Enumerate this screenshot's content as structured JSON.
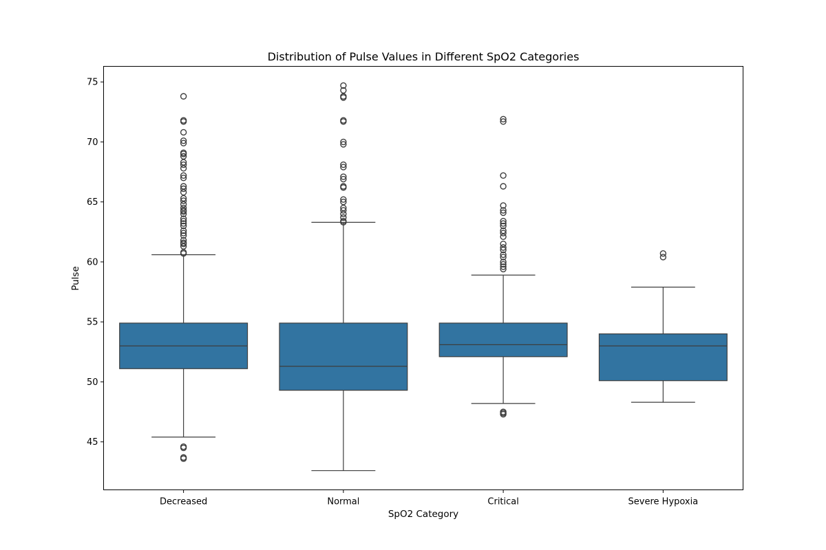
{
  "chart_data": {
    "type": "box",
    "title": "Distribution of Pulse Values in Different SpO2 Categories",
    "xlabel": "SpO2 Category",
    "ylabel": "Pulse",
    "ylim": [
      41,
      76.3
    ],
    "yticks": [
      45,
      50,
      55,
      60,
      65,
      70,
      75
    ],
    "grid": false,
    "colors": {
      "box_fill": "#3274a1",
      "line": "#3d3d3d",
      "frame": "#000000"
    },
    "categories": [
      "Decreased",
      "Normal",
      "Critical",
      "Severe Hypoxia"
    ],
    "boxes": [
      {
        "category": "Decreased",
        "whisker_low": 45.4,
        "q1": 51.1,
        "median": 53.0,
        "q3": 54.9,
        "whisker_high": 60.6,
        "outliers": [
          43.6,
          43.7,
          44.5,
          44.6,
          60.7,
          60.8,
          61.3,
          61.5,
          61.6,
          61.8,
          62.2,
          62.4,
          62.6,
          63.0,
          63.2,
          63.4,
          63.6,
          64.0,
          64.2,
          64.3,
          64.5,
          64.8,
          65.1,
          65.3,
          65.8,
          66.1,
          66.3,
          67.0,
          67.2,
          67.8,
          68.1,
          68.3,
          68.8,
          69.0,
          69.1,
          69.9,
          70.1,
          70.8,
          71.7,
          71.8,
          73.8
        ]
      },
      {
        "category": "Normal",
        "whisker_low": 42.6,
        "q1": 49.3,
        "median": 51.3,
        "q3": 54.9,
        "whisker_high": 63.3,
        "outliers": [
          63.3,
          63.4,
          63.7,
          64.0,
          64.3,
          64.5,
          65.0,
          65.2,
          66.2,
          66.3,
          66.9,
          67.1,
          67.9,
          68.1,
          69.8,
          70.0,
          71.7,
          71.8,
          73.7,
          73.8,
          74.3,
          74.7
        ]
      },
      {
        "category": "Critical",
        "whisker_low": 48.2,
        "q1": 52.1,
        "median": 53.1,
        "q3": 54.9,
        "whisker_high": 58.9,
        "outliers": [
          47.3,
          47.4,
          47.5,
          59.4,
          59.6,
          59.8,
          60.0,
          60.4,
          60.6,
          61.0,
          61.2,
          61.5,
          62.1,
          62.4,
          62.6,
          63.0,
          63.2,
          63.4,
          64.1,
          64.3,
          64.7,
          66.3,
          67.2,
          71.7,
          71.9
        ]
      },
      {
        "category": "Severe Hypoxia",
        "whisker_low": 48.3,
        "q1": 50.1,
        "median": 53.0,
        "q3": 54.0,
        "whisker_high": 57.9,
        "outliers": [
          60.4,
          60.7
        ]
      }
    ]
  }
}
